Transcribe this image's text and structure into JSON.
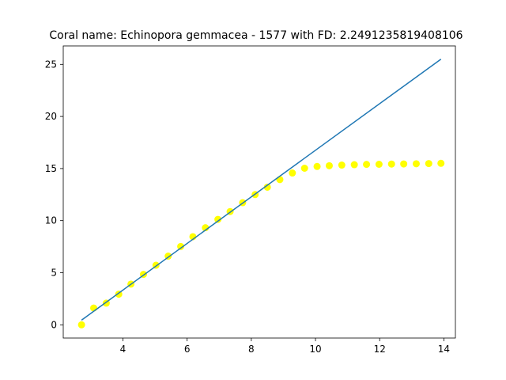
{
  "chart_data": {
    "type": "scatter",
    "title": "Coral name: Echinopora gemmacea - 1577 with FD: 2.2491235819408106",
    "xlabel": "",
    "ylabel": "",
    "xlim": [
      2.14,
      14.36
    ],
    "ylim": [
      -1.27,
      26.77
    ],
    "x_ticks": [
      4,
      6,
      8,
      10,
      12,
      14
    ],
    "y_ticks": [
      0,
      5,
      10,
      15,
      20,
      25
    ],
    "grid": false,
    "legend": "none",
    "series": [
      {
        "type": "scatter",
        "color": "#ffff00",
        "points": [
          [
            2.71,
            0.0
          ],
          [
            3.09,
            1.61
          ],
          [
            3.48,
            2.08
          ],
          [
            3.87,
            2.94
          ],
          [
            4.25,
            3.91
          ],
          [
            4.64,
            4.84
          ],
          [
            5.03,
            5.72
          ],
          [
            5.41,
            6.59
          ],
          [
            5.8,
            7.52
          ],
          [
            6.18,
            8.46
          ],
          [
            6.57,
            9.32
          ],
          [
            6.96,
            10.12
          ],
          [
            7.34,
            10.87
          ],
          [
            7.73,
            11.72
          ],
          [
            8.12,
            12.5
          ],
          [
            8.5,
            13.21
          ],
          [
            8.89,
            13.94
          ],
          [
            9.28,
            14.57
          ],
          [
            9.66,
            15.03
          ],
          [
            10.05,
            15.2
          ],
          [
            10.43,
            15.27
          ],
          [
            10.82,
            15.33
          ],
          [
            11.21,
            15.37
          ],
          [
            11.59,
            15.4
          ],
          [
            11.98,
            15.41
          ],
          [
            12.37,
            15.43
          ],
          [
            12.75,
            15.44
          ],
          [
            13.14,
            15.46
          ],
          [
            13.53,
            15.48
          ],
          [
            13.91,
            15.5
          ]
        ]
      },
      {
        "type": "line",
        "color": "#1f77b4",
        "points": [
          [
            2.71,
            0.45
          ],
          [
            13.91,
            25.5
          ]
        ]
      }
    ]
  }
}
